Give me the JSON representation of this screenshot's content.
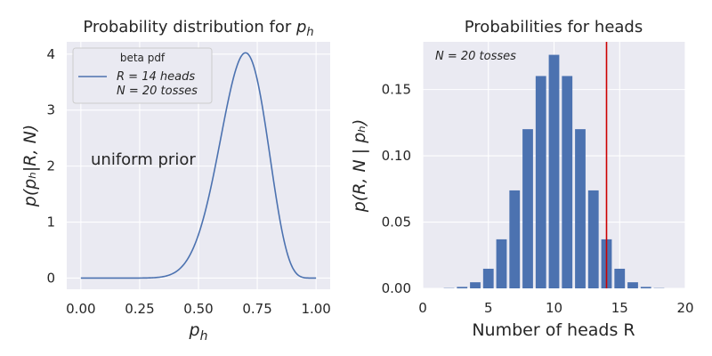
{
  "colors": {
    "panel_bg": "#eaeaf2",
    "series": "#4c72b0",
    "marker_line": "#cc0000",
    "text": "#262626"
  },
  "chart_data": [
    {
      "type": "line",
      "title_text": "Probability distribution for",
      "title_var": "p",
      "title_sub": "h",
      "xlabel_var": "p",
      "xlabel_sub": "h",
      "ylabel": "p(pₕ|R, N)",
      "xlim": [
        -0.06,
        1.06
      ],
      "ylim": [
        -0.2,
        4.22
      ],
      "xticks": [
        0,
        0.25,
        0.5,
        0.75,
        1.0
      ],
      "xtick_labels": [
        "0.00",
        "0.25",
        "0.50",
        "0.75",
        "1.00"
      ],
      "yticks": [
        0,
        1,
        2,
        3,
        4
      ],
      "ytick_labels": [
        "0",
        "1",
        "2",
        "3",
        "4"
      ],
      "series": [
        {
          "name": "beta pdf",
          "distribution": "beta",
          "heads_R": 14,
          "tosses_N": 20,
          "alpha": 15,
          "beta": 7,
          "domain": [
            0,
            1
          ]
        }
      ],
      "legend": {
        "title": "beta pdf",
        "line1": "R = 14 heads",
        "line2": "N = 20 tosses",
        "placement": "upper-left"
      },
      "annotation": "uniform prior"
    },
    {
      "type": "bar",
      "title": "Probabilities for heads",
      "xlabel": "Number of heads R",
      "ylabel": "p(R, N | pₕ)",
      "xlim": [
        0,
        20
      ],
      "ylim": [
        0,
        0.186
      ],
      "xticks": [
        0,
        5,
        10,
        15,
        20
      ],
      "xtick_labels": [
        "0",
        "5",
        "10",
        "15",
        "20"
      ],
      "yticks": [
        0,
        0.05,
        0.1,
        0.15
      ],
      "ytick_labels": [
        "0.00",
        "0.05",
        "0.10",
        "0.15"
      ],
      "categories": [
        0,
        1,
        2,
        3,
        4,
        5,
        6,
        7,
        8,
        9,
        10,
        11,
        12,
        13,
        14,
        15,
        16,
        17,
        18,
        19,
        20
      ],
      "values": [
        0.0,
        0.0,
        0.0002,
        0.0011,
        0.0046,
        0.0148,
        0.037,
        0.0739,
        0.1201,
        0.1602,
        0.1762,
        0.1602,
        0.1201,
        0.0739,
        0.037,
        0.0148,
        0.0046,
        0.0011,
        0.0002,
        0.0,
        0.0
      ],
      "vline_x": 14,
      "annotation": "N = 20 tosses"
    }
  ]
}
